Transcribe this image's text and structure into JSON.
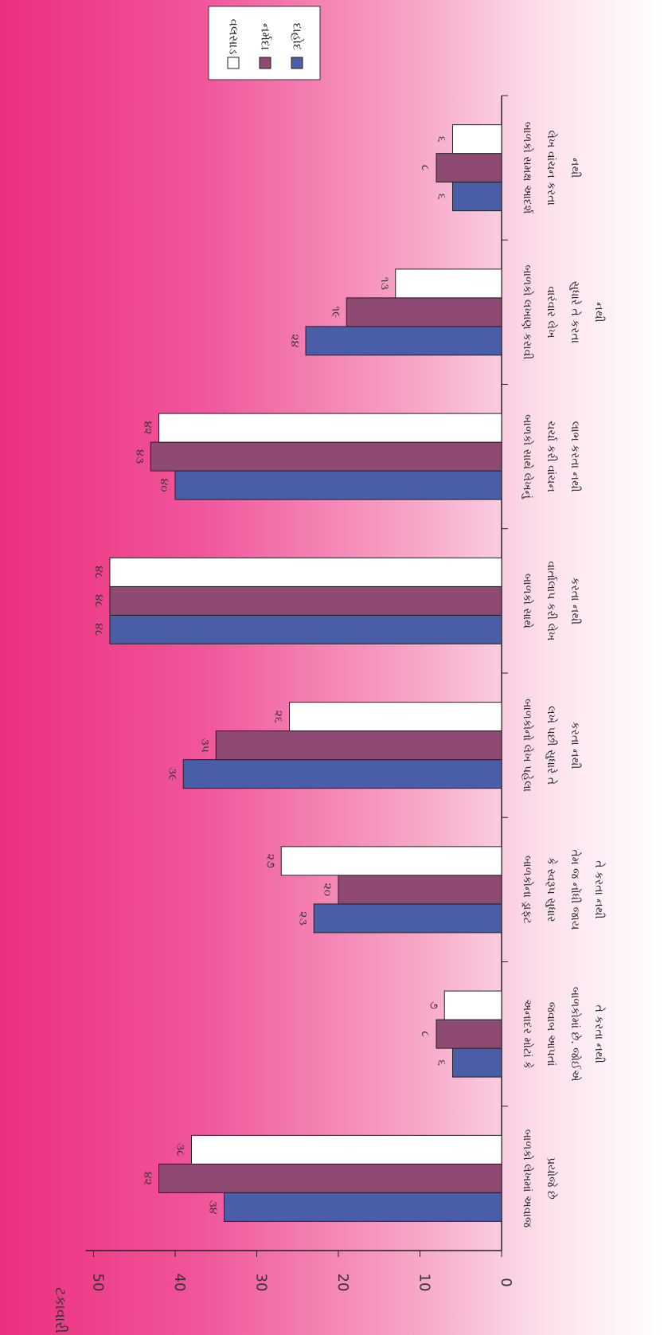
{
  "chart_data": {
    "type": "bar",
    "orientation": "rotated-90",
    "ylabel": "ટકાવારી",
    "ylim": [
      0,
      50
    ],
    "y_ticks": [
      "0",
      "10",
      "20",
      "30",
      "40",
      "50"
    ],
    "grid": false,
    "legend_position": "top-right",
    "categories": [
      "બાળકો લેખમાં અવાજ પ્રયોજે છે",
      "અનાદર મોટાં કે જવાબ આપતાં બાળકોમાં છે. જોઈએ તે કરતા નથી",
      "બાળકોના ડ્રાફ્ટ કે સ્વરૂપ સુધાર તેમ જ નોંધી જાય તે કરતા નથી",
      "બાળકોનો લેખ પહેલા લખે પછી સુધારે તે કરતા નથી",
      "બાળકો સાથે વાર્તાલાપ કરી લેખ કરતા નથી",
      "બાળકો સાથે લેખનું ચર્ચા કરી વાંચન લાભ કરતા નથી",
      "બાળકો લખાણ કરાવી વારંવાર લેખ સુધારે તે કરતા નથી",
      "બાળકો સમક્ષ આદર્શ લેખ વાંચન કરતા નથી"
    ],
    "series": [
      {
        "name": "દાહોદ",
        "color": "#4a5ea8",
        "values": [
          34,
          6,
          23,
          39,
          48,
          40,
          24,
          6
        ],
        "labels": [
          "૩૪",
          "૬",
          "૨૩",
          "૩૯",
          "૪૮",
          "૪૦",
          "૨૪",
          "૬"
        ]
      },
      {
        "name": "નર્મદા",
        "color": "#8e4a72",
        "values": [
          42,
          8,
          20,
          35,
          48,
          43,
          19,
          8
        ],
        "labels": [
          "૪૨",
          "૮",
          "૨૦",
          "૩૫",
          "૪૮",
          "૪૩",
          "૧૯",
          "૮"
        ]
      },
      {
        "name": "વલસાડ",
        "color": "#ffffff",
        "values": [
          38,
          7,
          27,
          26,
          48,
          42,
          13,
          6
        ],
        "labels": [
          "૩૮",
          "૭",
          "૨૭",
          "૨૬",
          "૪૮",
          "૪૨",
          "૧૩",
          "૬"
        ]
      }
    ]
  }
}
